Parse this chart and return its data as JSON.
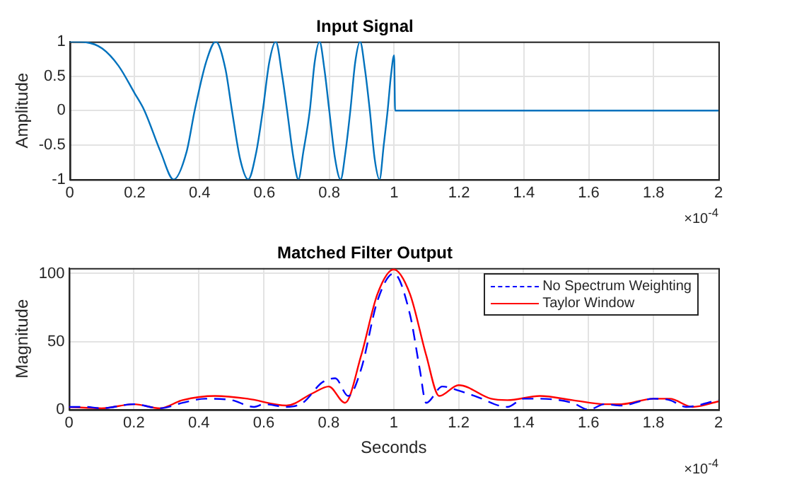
{
  "chart_data": [
    {
      "type": "line",
      "title": "Input Signal",
      "ylabel": "Amplitude",
      "annotations": [
        "×10$^{-4}$"
      ],
      "xlim": [
        0,
        2
      ],
      "xticks": [
        0,
        0.2,
        0.4,
        0.6,
        0.8,
        1,
        1.2,
        1.4,
        1.6,
        1.8,
        2
      ],
      "ylim": [
        -1,
        1
      ],
      "yticks": [
        -1,
        -0.5,
        0,
        0.5,
        1
      ],
      "grid": true,
      "marker": "none",
      "series": [
        {
          "color": "#0072bd",
          "line_style": "solid",
          "x": [
            0,
            0.05,
            0.1,
            0.15,
            0.2,
            0.23,
            0.28,
            0.32,
            0.36,
            0.385,
            0.42,
            0.45,
            0.48,
            0.5,
            0.525,
            0.55,
            0.575,
            0.595,
            0.615,
            0.635,
            0.655,
            0.67,
            0.69,
            0.705,
            0.72,
            0.74,
            0.755,
            0.77,
            0.785,
            0.8,
            0.818,
            0.835,
            0.85,
            0.865,
            0.88,
            0.895,
            0.91,
            0.925,
            0.94,
            0.955,
            0.968,
            0.98,
            0.99,
            1.0,
            1.003,
            2
          ],
          "values": [
            1,
            0.99,
            0.9,
            0.65,
            0.25,
            0,
            -0.6,
            -1,
            -0.6,
            0,
            0.7,
            1,
            0.6,
            0,
            -0.7,
            -1,
            -0.6,
            0,
            0.7,
            1,
            0.5,
            0,
            -0.7,
            -1,
            -0.6,
            0,
            0.7,
            1,
            0.6,
            0,
            -0.7,
            -1,
            -0.6,
            0,
            0.7,
            1,
            0.6,
            0,
            -0.7,
            -1,
            -0.5,
            0,
            0.5,
            0.8,
            0,
            0
          ]
        }
      ]
    },
    {
      "type": "line",
      "title": "Matched Filter Output",
      "xlabel": "Seconds",
      "ylabel": "Magnitude",
      "annotations": [
        "×10$^{-4}$"
      ],
      "xlim": [
        0,
        2
      ],
      "xticks": [
        0,
        0.2,
        0.4,
        0.6,
        0.8,
        1,
        1.2,
        1.4,
        1.6,
        1.8,
        2
      ],
      "ylim": [
        0,
        104
      ],
      "yticks": [
        0,
        50,
        100
      ],
      "grid": true,
      "legend": "top right",
      "marker": "none",
      "series": [
        {
          "name": "No Spectrum Weighting",
          "color": "#0000ff",
          "line_style": "dashed",
          "x": [
            0,
            0.05,
            0.1,
            0.2,
            0.28,
            0.35,
            0.42,
            0.5,
            0.57,
            0.6,
            0.67,
            0.72,
            0.78,
            0.82,
            0.86,
            0.9,
            0.95,
            1.0,
            1.05,
            1.08,
            1.1,
            1.15,
            1.2,
            1.25,
            1.35,
            1.4,
            1.45,
            1.55,
            1.6,
            1.65,
            1.7,
            1.8,
            1.85,
            1.9,
            2
          ],
          "values": [
            2,
            2,
            1,
            4,
            1,
            5,
            8,
            7,
            2,
            4,
            2,
            5,
            20,
            23,
            10,
            30,
            80,
            100,
            70,
            30,
            5,
            17,
            14,
            10,
            2,
            8,
            8,
            5,
            0,
            4,
            3,
            8,
            7,
            2,
            7
          ]
        },
        {
          "name": "Taylor Window",
          "color": "#ff0000",
          "line_style": "solid",
          "x": [
            0,
            0.1,
            0.2,
            0.28,
            0.35,
            0.45,
            0.55,
            0.67,
            0.75,
            0.8,
            0.85,
            0.9,
            0.95,
            1.0,
            1.05,
            1.1,
            1.14,
            1.2,
            1.3,
            1.35,
            1.45,
            1.55,
            1.65,
            1.7,
            1.8,
            1.85,
            1.92,
            2
          ],
          "values": [
            2,
            1,
            4,
            1,
            7,
            10,
            8,
            3,
            12,
            17,
            5,
            40,
            85,
            103,
            85,
            40,
            10,
            18,
            8,
            7,
            10,
            7,
            4,
            4,
            8,
            8,
            2,
            6
          ]
        }
      ]
    }
  ]
}
